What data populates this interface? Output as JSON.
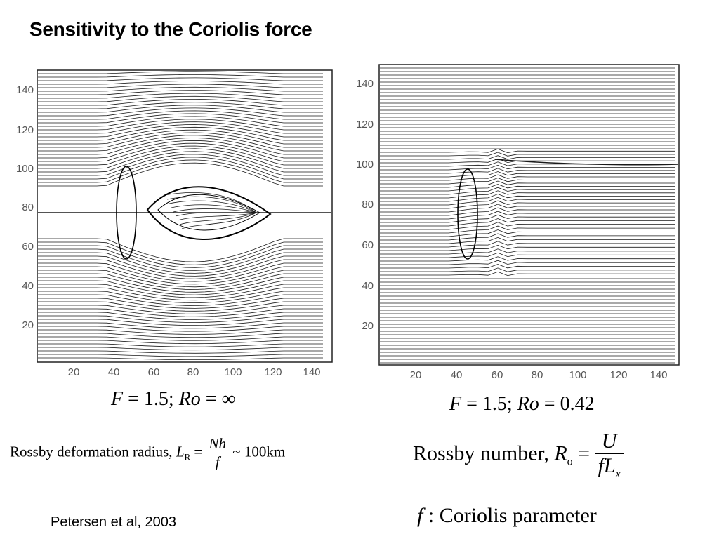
{
  "slide": {
    "title": "Sensitivity to the Coriolis force",
    "citation": "Petersen et al, 2003"
  },
  "left_panel": {
    "y_ticks": [
      "140",
      "120",
      "100",
      "80",
      "60",
      "40",
      "20"
    ],
    "x_ticks": [
      "20",
      "40",
      "60",
      "80",
      "100",
      "120",
      "140"
    ],
    "caption": {
      "F": "F",
      "F_val": "1.5",
      "Ro": "Ro",
      "Ro_val": "∞"
    }
  },
  "right_panel": {
    "y_ticks": [
      "140",
      "120",
      "100",
      "80",
      "60",
      "40",
      "20"
    ],
    "x_ticks": [
      "20",
      "40",
      "60",
      "80",
      "100",
      "120",
      "140"
    ],
    "caption": {
      "F": "F",
      "F_val": "1.5",
      "Ro": "Ro",
      "Ro_val": "0.42"
    }
  },
  "formulas": {
    "rossby_radius": {
      "label": "Rossby deformation radius,",
      "symbol": "L",
      "subscript": "R",
      "numerator": "Nh",
      "denominator": "f",
      "approx": "~ 100km"
    },
    "rossby_number": {
      "label": "Rossby number",
      "symbol": "R",
      "subscript": "o",
      "numerator": "U",
      "denominator": "fL",
      "denominator_sub": "x"
    },
    "coriolis": {
      "symbol": "f",
      "text": "Coriolis parameter"
    }
  },
  "colors": {
    "text": "#000000",
    "tick": "#555555",
    "background": "#ffffff"
  }
}
